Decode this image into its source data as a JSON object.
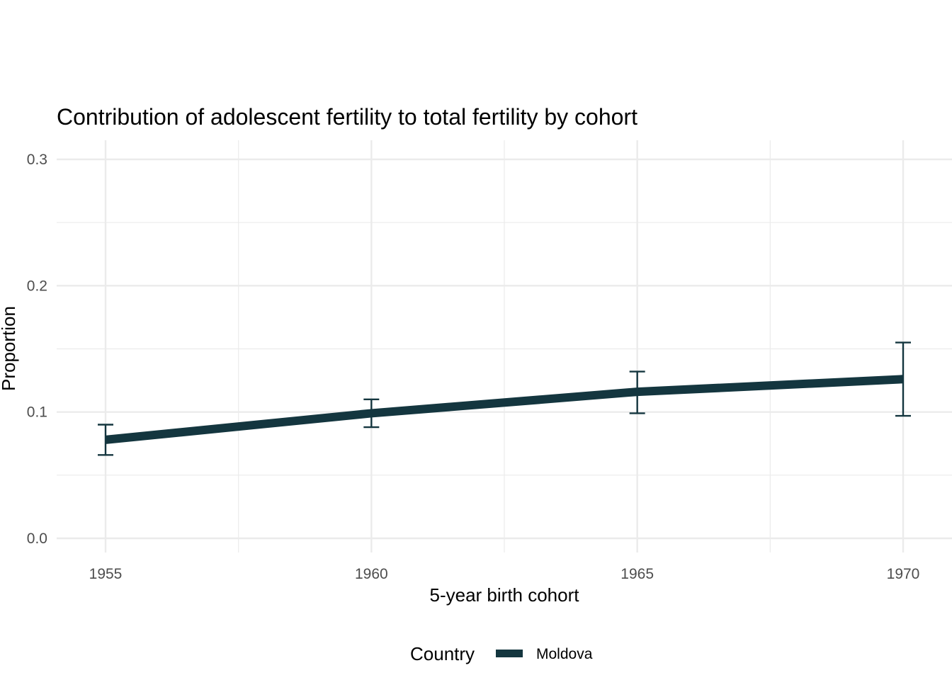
{
  "chart_data": {
    "type": "line",
    "title": "Contribution of adolescent fertility to total fertility by cohort",
    "xlabel": "5-year birth cohort",
    "ylabel": "Proportion",
    "x": [
      1955,
      1960,
      1965,
      1970
    ],
    "xticks": [
      "1955",
      "1960",
      "1965",
      "1970"
    ],
    "yticks": [
      "0.0",
      "0.1",
      "0.2",
      "0.3"
    ],
    "xlim": [
      1954.1,
      1970.9
    ],
    "ylim": [
      0,
      0.3
    ],
    "grid": true,
    "legend_position": "bottom",
    "legend_title": "Country",
    "series": [
      {
        "name": "Moldova",
        "color": "#14363f",
        "values": [
          0.078,
          0.099,
          0.116,
          0.126
        ],
        "lower": [
          0.066,
          0.088,
          0.099,
          0.097
        ],
        "upper": [
          0.09,
          0.11,
          0.132,
          0.155
        ]
      }
    ]
  }
}
